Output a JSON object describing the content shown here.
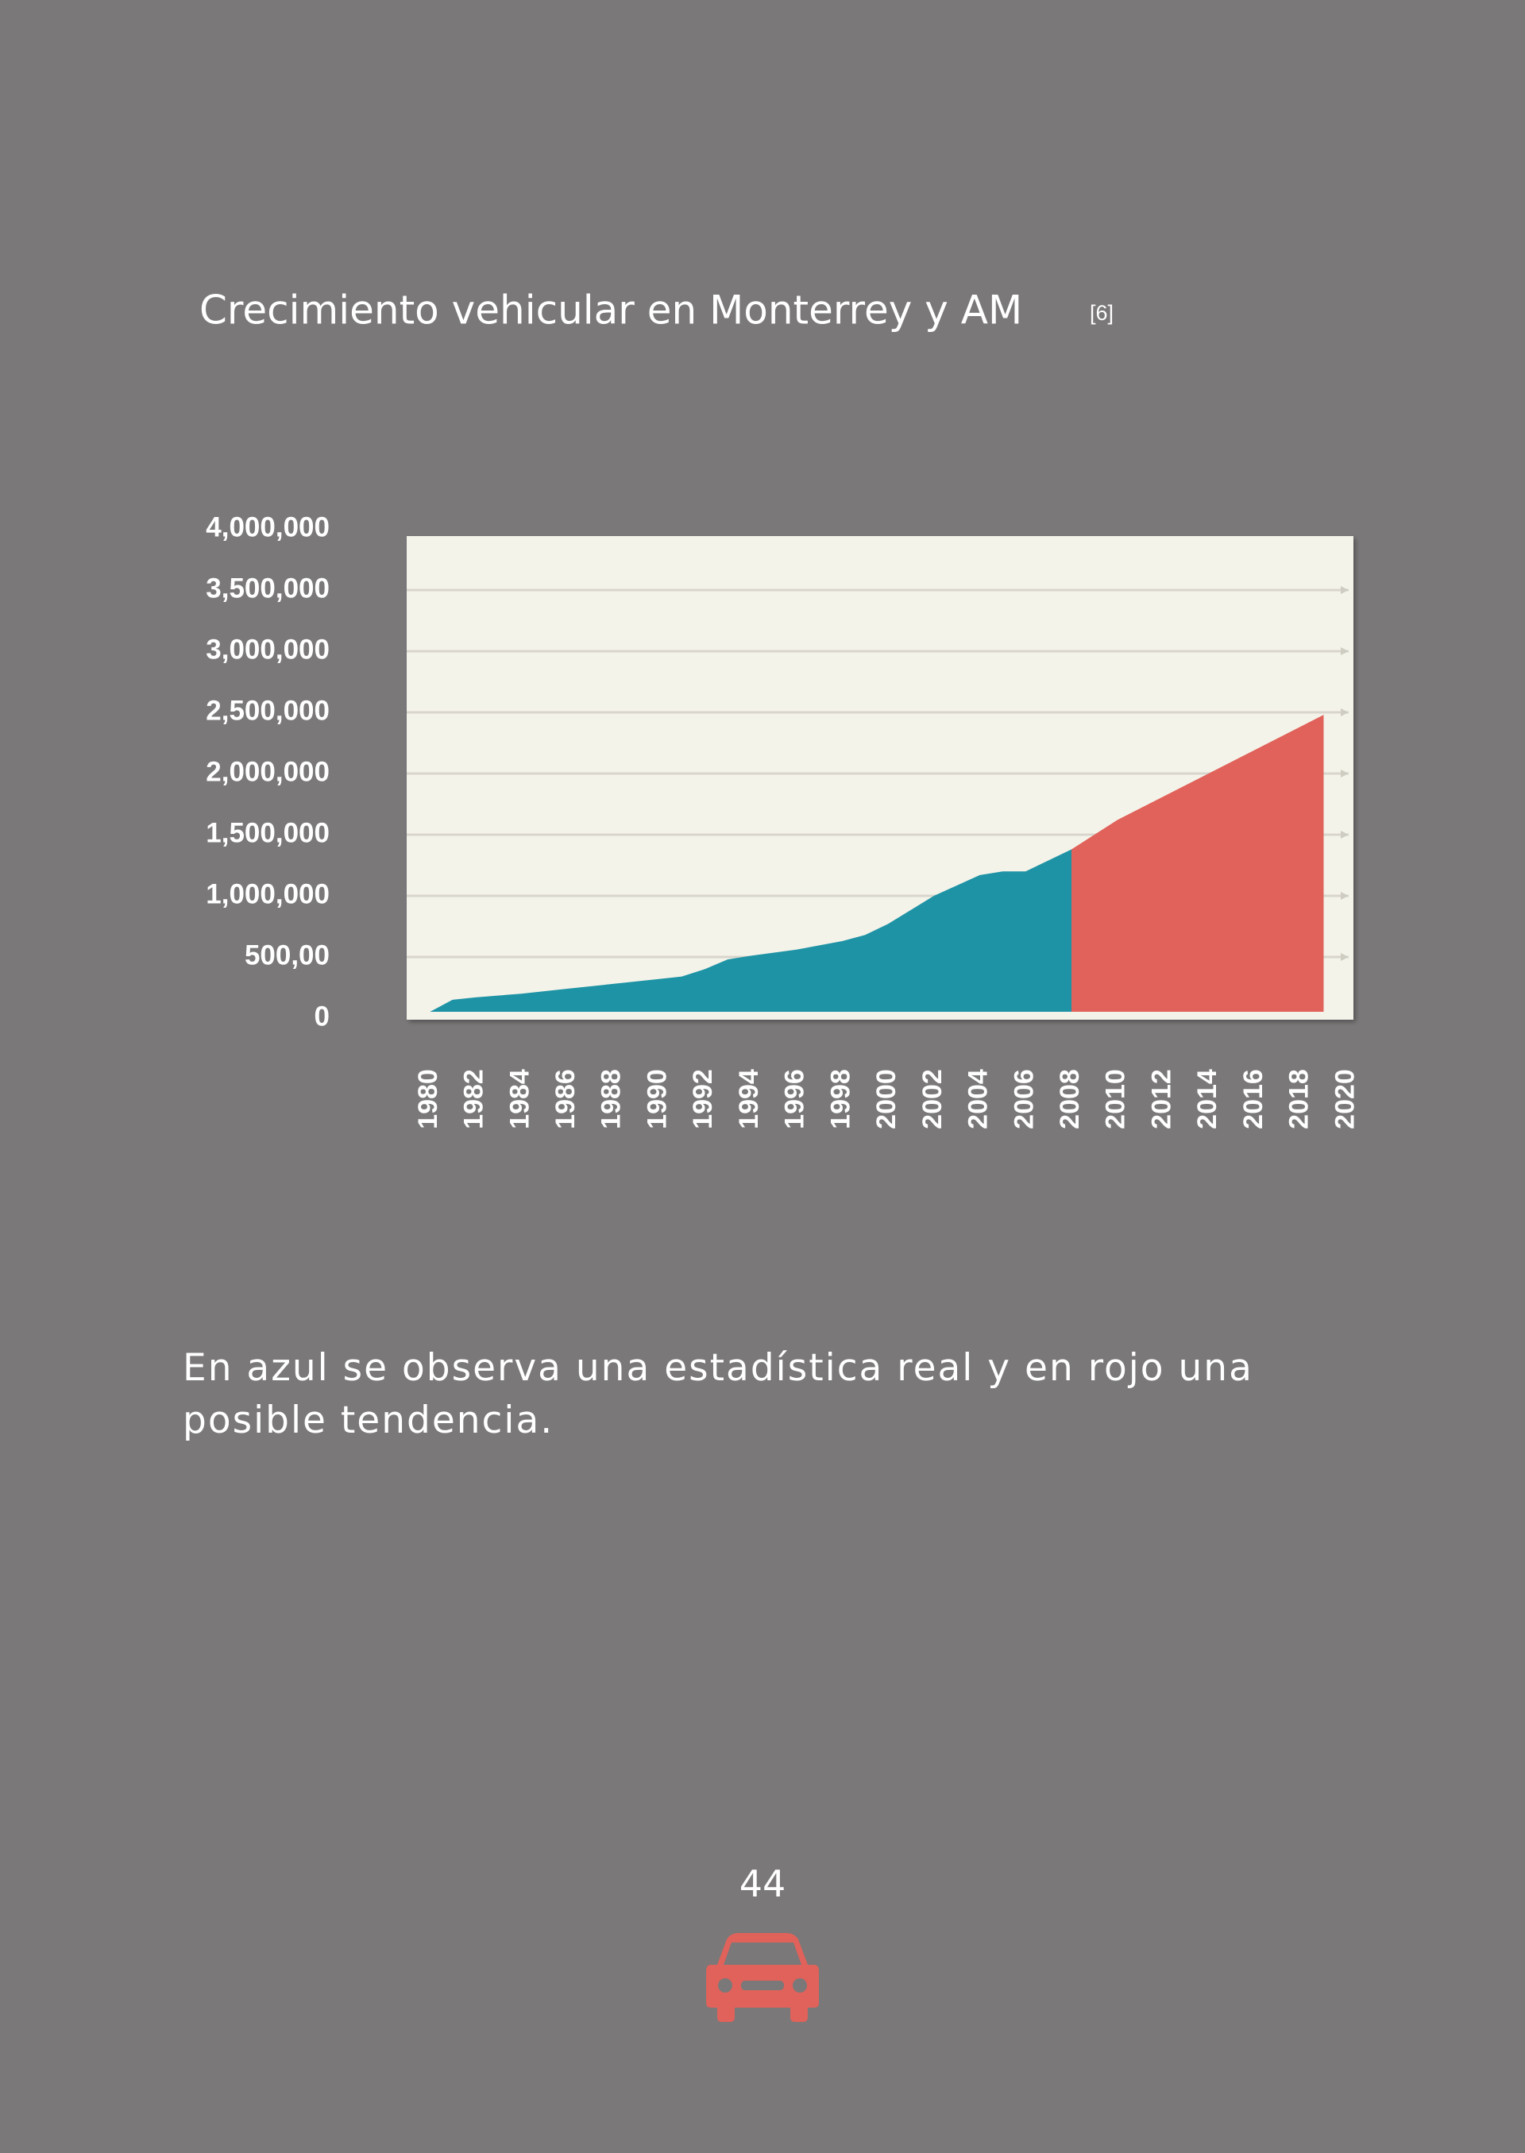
{
  "chart_data": {
    "type": "area",
    "title": "Crecimiento vehicular en Monterrey y AM",
    "citation": "[6]",
    "xlim": [
      1979,
      2020.3
    ],
    "xticks": [
      1980,
      1982,
      1984,
      1986,
      1988,
      1990,
      1992,
      1994,
      1996,
      1998,
      2000,
      2002,
      2004,
      2006,
      2008,
      2010,
      2012,
      2014,
      2016,
      2018,
      2020
    ],
    "ylim": [
      0,
      4000000
    ],
    "yticks": [
      0,
      {
        "value": 500000,
        "label": "500,00"
      },
      {
        "value": 1000000,
        "label": "1,000,000"
      },
      {
        "value": 1500000,
        "label": "1,500,000"
      },
      {
        "value": 2000000,
        "label": "2,000,000"
      },
      {
        "value": 2500000,
        "label": "2,500,000"
      },
      {
        "value": 3000000,
        "label": "3,000,000"
      },
      {
        "value": 3500000,
        "label": "3,500,000"
      },
      {
        "value": 4000000,
        "label": "4,000,000"
      }
    ],
    "grid": true,
    "series": [
      {
        "color": "#1e93a5",
        "x": [
          1980,
          1981,
          1982,
          1984,
          1986,
          1988,
          1990,
          1991,
          1992,
          1993,
          1994,
          1996,
          1998,
          1999,
          2000,
          2002,
          2004,
          2005,
          2006,
          2008
        ],
        "values": [
          50000,
          150000,
          170000,
          200000,
          240000,
          280000,
          320000,
          340000,
          400000,
          480000,
          510000,
          560000,
          630000,
          680000,
          770000,
          1000000,
          1170000,
          1200000,
          1200000,
          1380000
        ]
      },
      {
        "color": "#e0625a",
        "x": [
          2008,
          2010,
          2019
        ],
        "values": [
          1380000,
          1620000,
          2480000
        ]
      }
    ]
  },
  "body_text": "En azul se observa una estadística real y en rojo una posible tendencia.",
  "page_number": "44"
}
